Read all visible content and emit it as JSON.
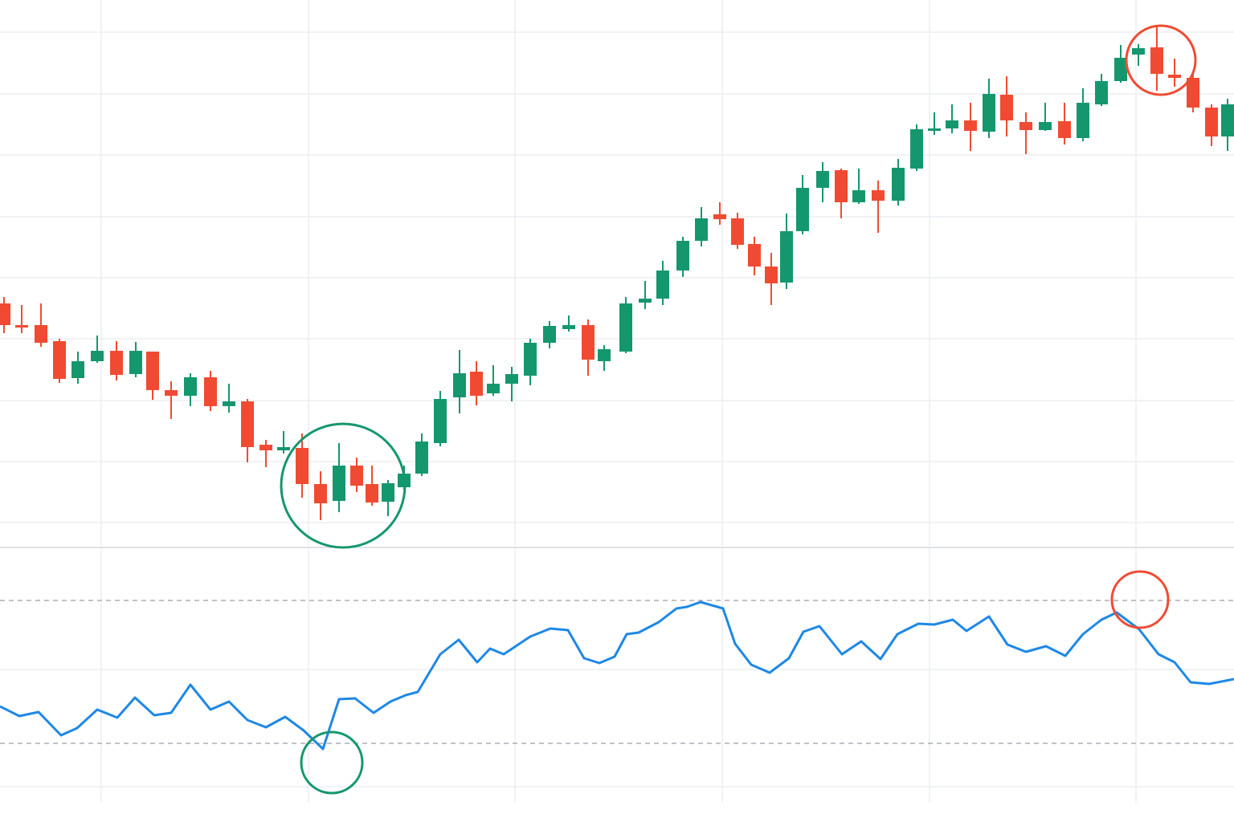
{
  "chart_data": [
    {
      "type": "candlestick",
      "up_color": "#15976e",
      "down_color": "#f04b32",
      "xlim": [
        0,
        1536
      ],
      "ylim": [
        20,
        700
      ],
      "xgrid": [
        126,
        384,
        641,
        899,
        1157,
        1414
      ],
      "ygrid": [
        660,
        583,
        507,
        430,
        354,
        278,
        201,
        125,
        49
      ],
      "x": [
        5,
        27,
        51,
        74,
        97,
        121,
        145,
        169,
        190,
        213,
        237,
        262,
        285,
        308,
        331,
        353,
        376,
        399,
        422,
        444,
        463,
        483,
        503,
        525,
        548,
        572,
        593,
        614,
        637,
        660,
        684,
        708,
        732,
        752,
        779,
        803,
        825,
        850,
        873,
        896,
        918,
        939,
        960,
        979,
        999,
        1024,
        1047,
        1069,
        1093,
        1118,
        1141,
        1163,
        1185,
        1208,
        1231,
        1253,
        1277,
        1301,
        1325,
        1348,
        1371,
        1395,
        1417,
        1440,
        1462,
        1485,
        1508,
        1528
      ],
      "open": [
        322,
        295,
        295,
        275,
        229,
        250,
        263,
        234,
        262,
        214,
        207,
        230,
        194,
        200,
        146,
        139,
        142,
        97,
        76,
        120,
        97,
        75,
        93,
        110,
        148,
        205,
        237,
        210,
        222,
        232,
        273,
        290,
        295,
        250,
        262,
        323,
        328,
        363,
        400,
        433,
        428,
        396,
        368,
        348,
        412,
        466,
        488,
        448,
        463,
        450,
        490,
        539,
        540,
        550,
        536,
        582,
        548,
        538,
        549,
        528,
        570,
        599,
        632,
        641,
        607,
        603,
        566,
        530
      ],
      "high": [
        330,
        320,
        322,
        278,
        262,
        282,
        275,
        274,
        262,
        225,
        235,
        238,
        222,
        203,
        152,
        163,
        160,
        113,
        148,
        130,
        120,
        102,
        120,
        160,
        213,
        264,
        250,
        245,
        243,
        278,
        300,
        307,
        302,
        270,
        330,
        350,
        375,
        405,
        442,
        448,
        435,
        405,
        385,
        434,
        482,
        498,
        490,
        490,
        475,
        502,
        545,
        560,
        570,
        572,
        602,
        605,
        560,
        572,
        572,
        590,
        608,
        644,
        645,
        667,
        627,
        610,
        570,
        577
      ],
      "low": [
        285,
        285,
        268,
        223,
        222,
        248,
        226,
        230,
        202,
        178,
        194,
        188,
        186,
        124,
        118,
        135,
        80,
        52,
        62,
        87,
        70,
        57,
        90,
        107,
        144,
        185,
        195,
        207,
        200,
        220,
        266,
        287,
        232,
        238,
        260,
        315,
        320,
        355,
        393,
        420,
        390,
        357,
        320,
        340,
        408,
        448,
        428,
        446,
        410,
        444,
        487,
        532,
        534,
        512,
        528,
        530,
        508,
        537,
        520,
        524,
        568,
        597,
        618,
        587,
        592,
        560,
        518,
        512
      ],
      "close": [
        295,
        292,
        273,
        228,
        250,
        263,
        233,
        263,
        214,
        207,
        230,
        194,
        200,
        143,
        139,
        143,
        97,
        73,
        120,
        95,
        74,
        98,
        110,
        150,
        203,
        235,
        207,
        222,
        234,
        273,
        294,
        295,
        252,
        265,
        322,
        328,
        363,
        400,
        428,
        427,
        395,
        368,
        347,
        412,
        466,
        487,
        448,
        463,
        450,
        491,
        539,
        540,
        550,
        537,
        583,
        550,
        538,
        548,
        528,
        572,
        599,
        628,
        640,
        608,
        603,
        566,
        530,
        570
      ]
    },
    {
      "type": "line",
      "color": "#1e88e5",
      "xlim": [
        0,
        1536
      ],
      "ylim": [
        0,
        318
      ],
      "xgrid": [
        126,
        384,
        641,
        899,
        1157,
        1414
      ],
      "ygrid": [
        166,
        20
      ],
      "levels": [
        252,
        74
      ],
      "x": [
        0,
        24,
        48,
        76,
        96,
        121,
        146,
        168,
        192,
        213,
        237,
        262,
        285,
        308,
        331,
        355,
        378,
        402,
        422,
        442,
        465,
        486,
        505,
        520,
        548,
        571,
        594,
        610,
        627,
        660,
        685,
        707,
        727,
        746,
        765,
        780,
        795,
        820,
        842,
        855,
        872,
        900,
        915,
        935,
        958,
        982,
        1000,
        1020,
        1048,
        1072,
        1096,
        1117,
        1143,
        1163,
        1186,
        1203,
        1231,
        1254,
        1277,
        1302,
        1326,
        1348,
        1371,
        1390,
        1418,
        1442,
        1462,
        1482,
        1505,
        1536
      ],
      "values": [
        120,
        108,
        113,
        84,
        93,
        116,
        106,
        131,
        109,
        112,
        147,
        116,
        126,
        103,
        94,
        107,
        90,
        67,
        129,
        130,
        112,
        126,
        134,
        138,
        185,
        203,
        175,
        192,
        185,
        207,
        217,
        215,
        180,
        174,
        182,
        210,
        212,
        225,
        242,
        244,
        250,
        242,
        198,
        172,
        162,
        180,
        213,
        220,
        185,
        201,
        179,
        210,
        223,
        222,
        228,
        214,
        232,
        197,
        188,
        195,
        183,
        210,
        228,
        237,
        216,
        185,
        175,
        150,
        148,
        154
      ]
    }
  ]
}
